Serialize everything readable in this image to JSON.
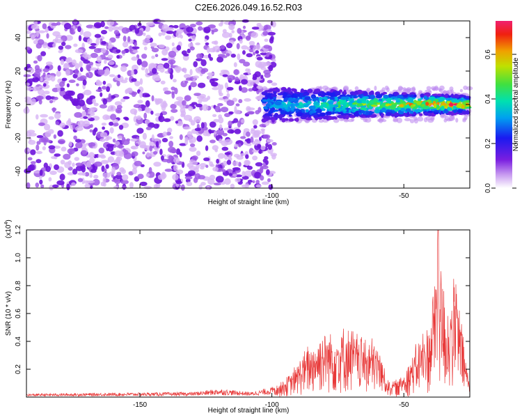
{
  "title": "C2E6.2026.049.16.52.R03",
  "chart_data": [
    {
      "type": "heatmap",
      "name": "spectrogram",
      "xlabel": "Height of straight line (km)",
      "ylabel": "Frequency (Hz)",
      "xlim": [
        -193,
        -25
      ],
      "ylim": [
        -50,
        50
      ],
      "xticks": [
        -150,
        -100,
        -50
      ],
      "yticks": [
        -40,
        -20,
        0,
        20,
        40
      ],
      "colorbar": {
        "label": "Normalized spectral amplitude",
        "range": [
          0,
          0.75
        ],
        "ticks": [
          0.0,
          0.2,
          0.4,
          0.6
        ]
      },
      "regions": [
        {
          "x_range": [
            -193,
            -103
          ],
          "description": "broadband noise",
          "amplitude": 0.08
        },
        {
          "x_range": [
            -103,
            -25
          ],
          "freq_center": 0,
          "description": "coherent band near 0 Hz",
          "amplitude_range": [
            0.1,
            0.75
          ]
        }
      ]
    },
    {
      "type": "line",
      "name": "snr",
      "xlabel": "Height of straight line (km)",
      "ylabel": "SNR (10 * v/v)",
      "multiplier_label": "(x10",
      "multiplier_exp": "4",
      "multiplier_close": ")",
      "xlim": [
        -193,
        -25
      ],
      "ylim": [
        0,
        1.2
      ],
      "xticks": [
        -150,
        -100,
        -50
      ],
      "yticks": [
        0.2,
        0.4,
        0.6,
        0.8,
        1.0,
        1.2
      ],
      "color": "#e83a3a",
      "envelope": [
        {
          "x": -193,
          "y": 0.02
        },
        {
          "x": -130,
          "y": 0.03
        },
        {
          "x": -120,
          "y": 0.05
        },
        {
          "x": -108,
          "y": 0.03
        },
        {
          "x": -100,
          "y": 0.06
        },
        {
          "x": -93,
          "y": 0.16
        },
        {
          "x": -88,
          "y": 0.32
        },
        {
          "x": -80,
          "y": 0.48
        },
        {
          "x": -70,
          "y": 0.48
        },
        {
          "x": -60,
          "y": 0.38
        },
        {
          "x": -56,
          "y": 0.12
        },
        {
          "x": -52,
          "y": 0.12
        },
        {
          "x": -46,
          "y": 0.34
        },
        {
          "x": -40,
          "y": 0.55
        },
        {
          "x": -37,
          "y": 1.2
        },
        {
          "x": -34,
          "y": 0.62
        },
        {
          "x": -30,
          "y": 0.85
        },
        {
          "x": -27,
          "y": 0.35
        },
        {
          "x": -25,
          "y": 0.1
        }
      ]
    }
  ]
}
